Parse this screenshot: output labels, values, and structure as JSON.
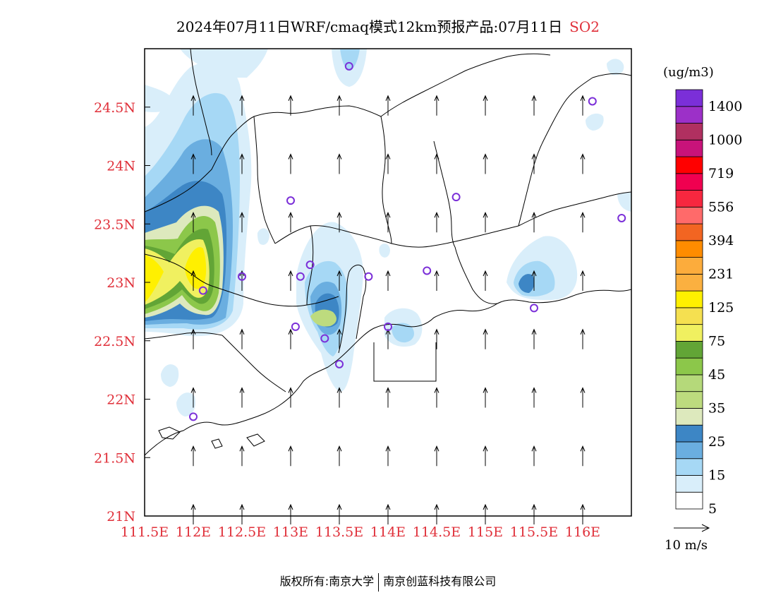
{
  "title": {
    "main": "2024年07月11日WRF/cmaq模式12km预报产品:07月11日",
    "species": "SO2"
  },
  "map": {
    "lon_range": [
      111.5,
      116.5
    ],
    "lat_range": [
      21.0,
      25.0
    ],
    "lon_ticks": [
      "111.5E",
      "112E",
      "112.5E",
      "113E",
      "113.5E",
      "114E",
      "114.5E",
      "115E",
      "115.5E",
      "116E"
    ],
    "lat_ticks": [
      "21N",
      "21.5N",
      "22N",
      "22.5N",
      "23N",
      "23.5N",
      "24N",
      "24.5N"
    ],
    "tick_color": "#e0303a",
    "wind_direction": "south-to-north (arrows pointing north)",
    "stations": [
      {
        "lon": 113.6,
        "lat": 24.85
      },
      {
        "lon": 116.1,
        "lat": 24.55
      },
      {
        "lon": 113.0,
        "lat": 23.7
      },
      {
        "lon": 114.7,
        "lat": 23.73
      },
      {
        "lon": 116.4,
        "lat": 23.55
      },
      {
        "lon": 113.2,
        "lat": 23.15
      },
      {
        "lon": 112.5,
        "lat": 23.05
      },
      {
        "lon": 113.1,
        "lat": 23.05
      },
      {
        "lon": 113.8,
        "lat": 23.05
      },
      {
        "lon": 114.4,
        "lat": 23.1
      },
      {
        "lon": 112.1,
        "lat": 22.93
      },
      {
        "lon": 115.5,
        "lat": 22.78
      },
      {
        "lon": 113.05,
        "lat": 22.62
      },
      {
        "lon": 114.0,
        "lat": 22.62
      },
      {
        "lon": 113.35,
        "lat": 22.52
      },
      {
        "lon": 113.5,
        "lat": 22.3
      },
      {
        "lon": 112.0,
        "lat": 21.85
      }
    ]
  },
  "legend": {
    "unit": "(ug/m3)",
    "levels": [
      {
        "label": "5",
        "color": "#ffffff"
      },
      {
        "label": "",
        "color": "#d9eefa"
      },
      {
        "label": "15",
        "color": "#a6d8f5"
      },
      {
        "label": "",
        "color": "#6aaee0"
      },
      {
        "label": "25",
        "color": "#3d86c5"
      },
      {
        "label": "",
        "color": "#dde9bd"
      },
      {
        "label": "35",
        "color": "#bddb7e"
      },
      {
        "label": "",
        "color": "#b5d97a"
      },
      {
        "label": "45",
        "color": "#8cc74a"
      },
      {
        "label": "",
        "color": "#62a536"
      },
      {
        "label": "75",
        "color": "#f0f060"
      },
      {
        "label": "",
        "color": "#f5e050"
      },
      {
        "label": "125",
        "color": "#fff000"
      },
      {
        "label": "",
        "color": "#fbb040"
      },
      {
        "label": "231",
        "color": "#fcac3c"
      },
      {
        "label": "",
        "color": "#ff8c00"
      },
      {
        "label": "394",
        "color": "#f26522"
      },
      {
        "label": "",
        "color": "#ff6a6a"
      },
      {
        "label": "556",
        "color": "#f7273f"
      },
      {
        "label": "",
        "color": "#f00050"
      },
      {
        "label": "719",
        "color": "#ff0000"
      },
      {
        "label": "",
        "color": "#c8137a"
      },
      {
        "label": "1000",
        "color": "#b03060"
      },
      {
        "label": "",
        "color": "#9c30c8"
      },
      {
        "label": "1400",
        "color": "#7b2fd8"
      }
    ]
  },
  "wind_legend": {
    "label": "10 m/s"
  },
  "footer": {
    "left": "版权所有:南京大学",
    "right": "南京创蓝科技有限公司"
  }
}
